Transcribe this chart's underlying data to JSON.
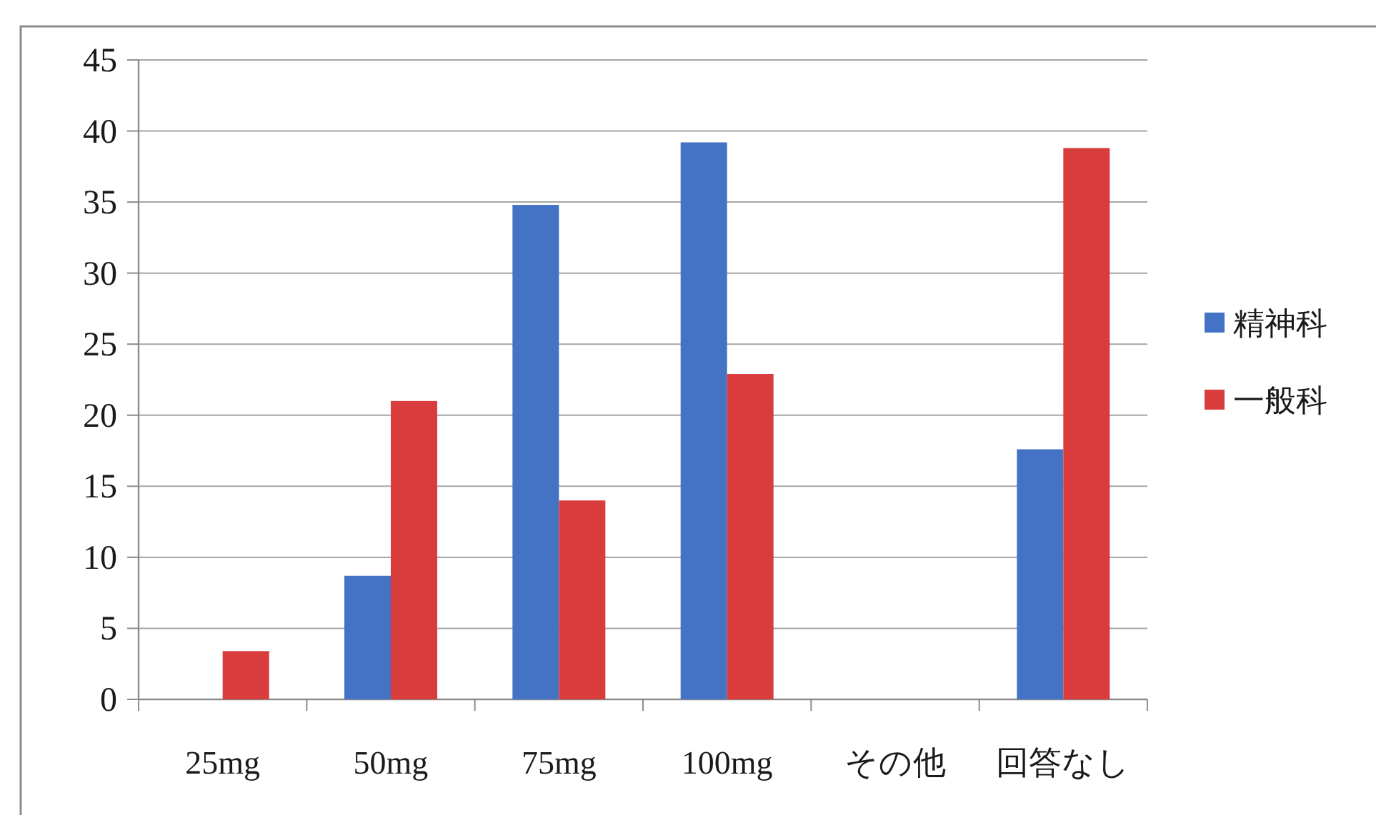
{
  "chart_data": {
    "type": "bar",
    "categories": [
      "25mg",
      "50mg",
      "75mg",
      "100mg",
      "その他",
      "回答なし"
    ],
    "series": [
      {
        "name": "精神科",
        "color": "#4472c4",
        "values": [
          0,
          8.7,
          34.8,
          39.2,
          0,
          17.6
        ]
      },
      {
        "name": "一般科",
        "color": "#d93c3c",
        "values": [
          3.4,
          21,
          14,
          22.9,
          0,
          38.8
        ]
      }
    ],
    "ylim": [
      0,
      45
    ],
    "yticks": [
      0,
      5,
      10,
      15,
      20,
      25,
      30,
      35,
      40,
      45
    ],
    "grid": "y",
    "legend": "right"
  }
}
